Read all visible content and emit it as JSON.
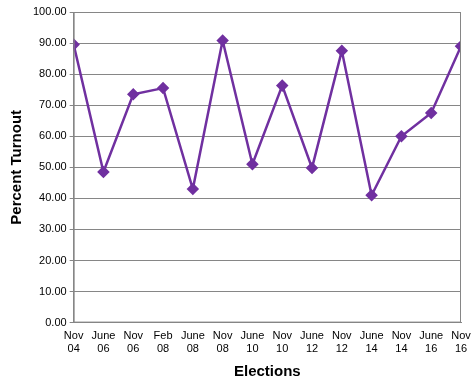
{
  "chart_data": {
    "type": "line",
    "x_label": "Elections",
    "y_label": "Percent Turnout",
    "categories": [
      "Nov 04",
      "June 06",
      "Nov 06",
      "Feb 08",
      "June 08",
      "Nov 08",
      "June 10",
      "Nov 10",
      "June 12",
      "Nov 12",
      "June 14",
      "Nov 14",
      "June 16",
      "Nov 16"
    ],
    "values": [
      89.5,
      48.5,
      73.5,
      75.5,
      43,
      90.8,
      51,
      76.3,
      49.8,
      87.5,
      41,
      60,
      67.5,
      89
    ],
    "color": "#7030a0",
    "marker": "diamond",
    "line_style": "solid",
    "ylim": [
      0,
      100
    ],
    "yticks": [
      {
        "value": 0,
        "label": "0.00"
      },
      {
        "value": 10,
        "label": "10.00"
      },
      {
        "value": 20,
        "label": "20.00"
      },
      {
        "value": 30,
        "label": "30.00"
      },
      {
        "value": 40,
        "label": "40.00"
      },
      {
        "value": 50,
        "label": "50.00"
      },
      {
        "value": 60,
        "label": "60.00"
      },
      {
        "value": 70,
        "label": "70.00"
      },
      {
        "value": 80,
        "label": "80.00"
      },
      {
        "value": 90,
        "label": "90.00"
      },
      {
        "value": 100,
        "label": "100.00"
      }
    ],
    "grid": true
  }
}
